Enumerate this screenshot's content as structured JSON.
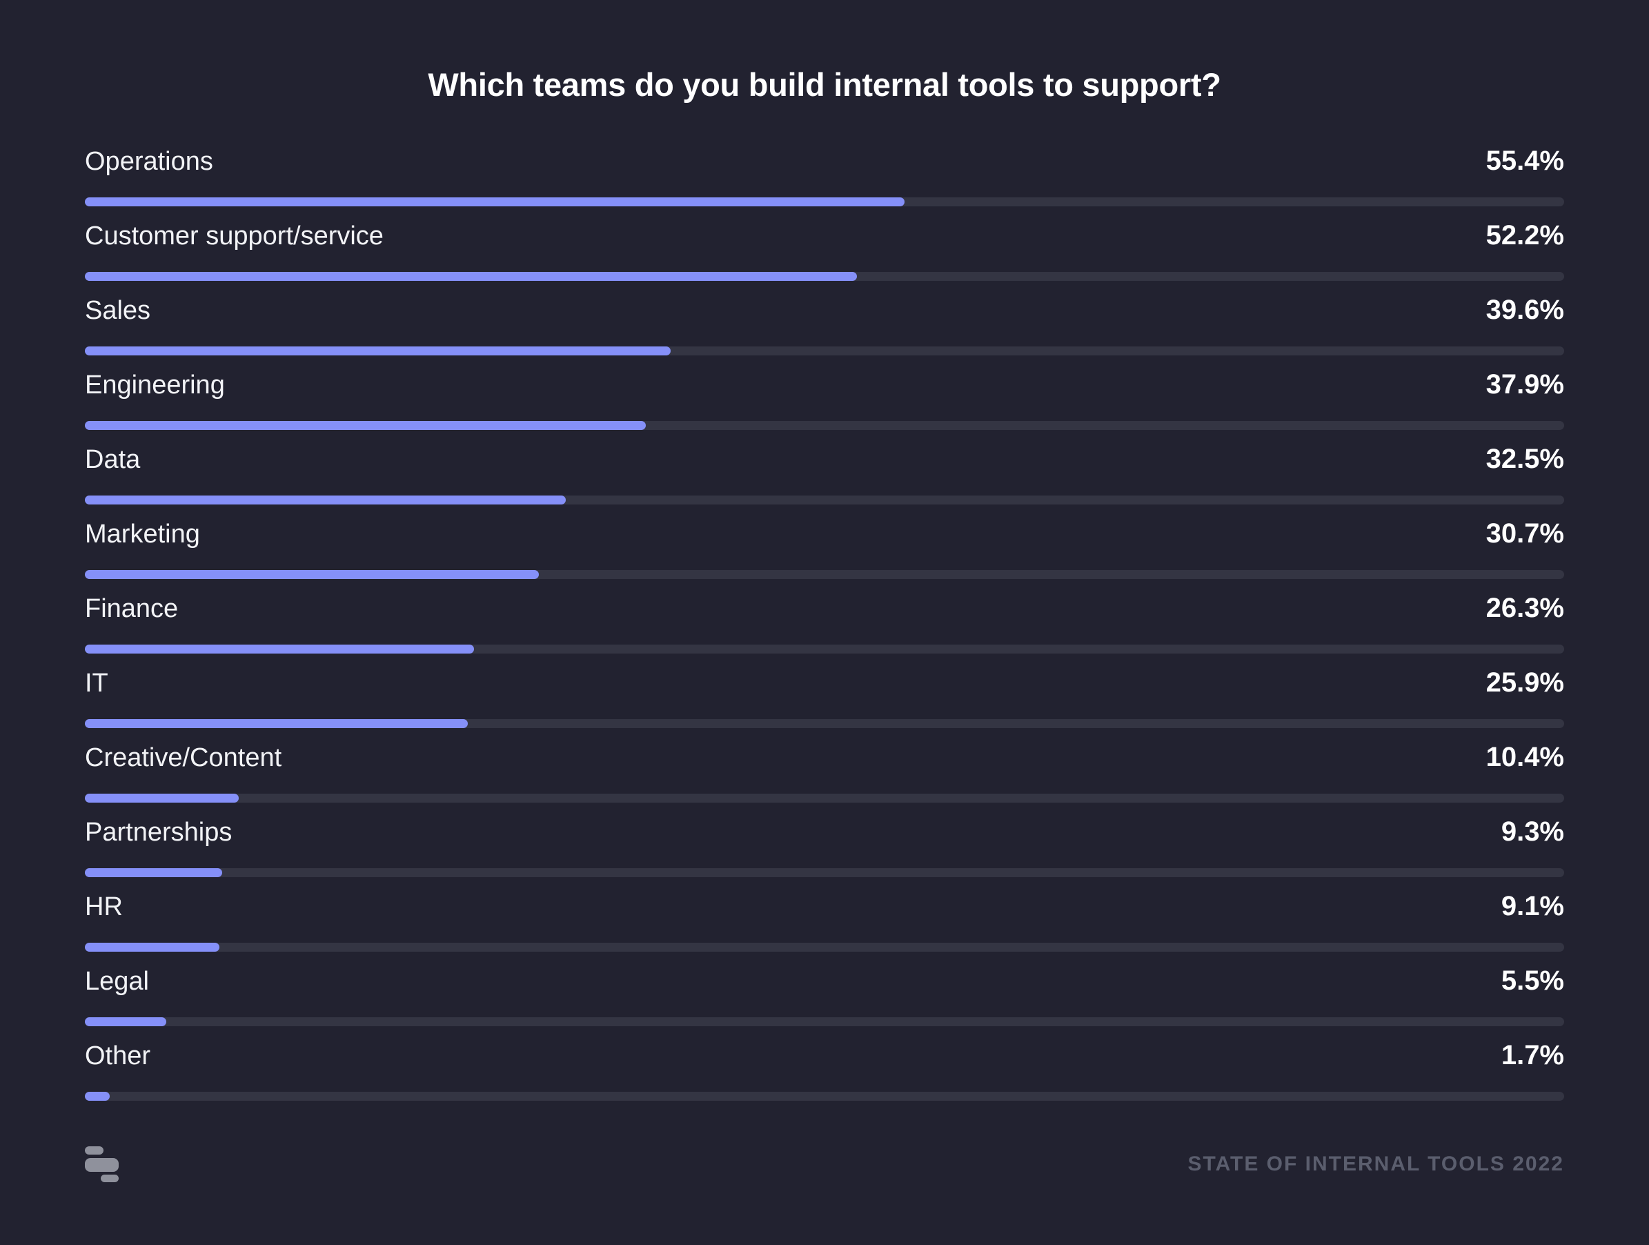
{
  "page": {
    "background_color": "#222230",
    "accent_color": "#8590F8"
  },
  "chart_data": {
    "type": "bar",
    "orientation": "horizontal",
    "title": "Which teams do you build internal tools to support?",
    "categories": [
      "Operations",
      "Customer support/service",
      "Sales",
      "Engineering",
      "Data",
      "Marketing",
      "Finance",
      "IT",
      "Creative/Content",
      "Partnerships",
      "HR",
      "Legal",
      "Other"
    ],
    "values": [
      55.4,
      52.2,
      39.6,
      37.9,
      32.5,
      30.7,
      26.3,
      25.9,
      10.4,
      9.3,
      9.1,
      5.5,
      1.7
    ],
    "value_suffix": "%",
    "xlim": [
      0,
      100
    ],
    "grid": false,
    "legend": false,
    "data_labels_position": "right",
    "bar_color": "#8590F8",
    "track_color": "#343543",
    "label_color": "#F2F3F6",
    "value_color": "#FFFFFF"
  },
  "footer": {
    "logo_icon": "retool-logo",
    "source_label": "STATE OF INTERNAL TOOLS 2022"
  }
}
